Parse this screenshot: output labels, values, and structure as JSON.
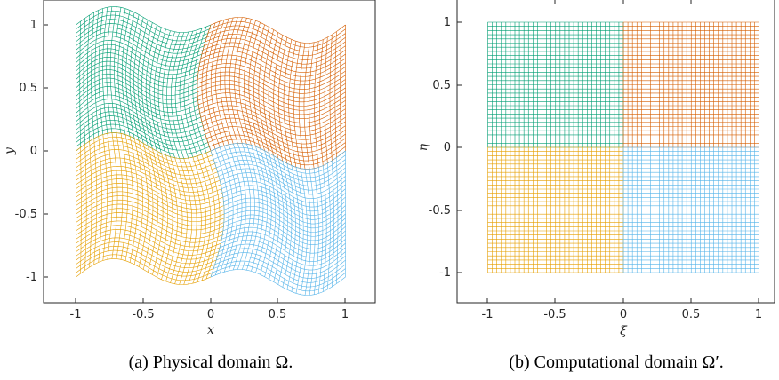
{
  "colors": {
    "green": "#009e73",
    "orange": "#d55e00",
    "yellow": "#e69f00",
    "blue": "#56b4e9"
  },
  "panel_a": {
    "caption": "(a) Physical domain Ω.",
    "xlabel": "x",
    "ylabel": "y",
    "xticks": [
      "-1",
      "-0.5",
      "0",
      "0.5",
      "1"
    ],
    "yticks": [
      "1",
      "0.5",
      "0",
      "-0.5",
      "-1"
    ]
  },
  "panel_b": {
    "caption": "(b) Computational domain Ω′.",
    "xlabel": "ξ",
    "ylabel": "η",
    "xticks": [
      "-1",
      "-0.5",
      "0",
      "0.5",
      "1"
    ],
    "yticks": [
      "1",
      "0.5",
      "0",
      "-0.5",
      "-1"
    ]
  }
}
